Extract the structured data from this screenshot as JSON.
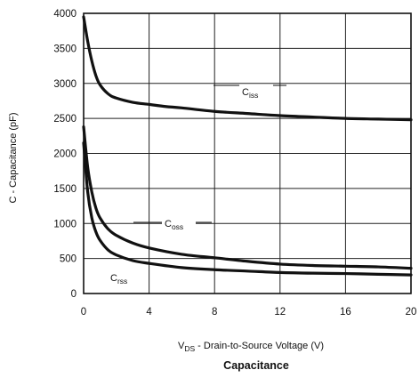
{
  "chart_data": {
    "type": "line",
    "caption": "Capacitance",
    "xlabel": {
      "prefix": "V",
      "sub": "DS",
      "text": "  -  Drain-to-Source Voltage (V)"
    },
    "ylabel": "C  -  Capacitance (pF)",
    "xlim": [
      0,
      20
    ],
    "ylim": [
      0,
      4000
    ],
    "xticks": [
      "0",
      "4",
      "8",
      "12",
      "16",
      "20"
    ],
    "yticks": [
      "0",
      "500",
      "1000",
      "1500",
      "2000",
      "2500",
      "3000",
      "3500",
      "4000"
    ],
    "grid": true,
    "series": [
      {
        "name": "Ciss",
        "label_main": "C",
        "label_sub": "iss",
        "x": [
          0,
          0.25,
          0.5,
          0.75,
          1,
          1.5,
          2,
          3,
          4,
          5,
          6,
          8,
          10,
          12,
          14,
          16,
          18,
          20
        ],
        "y": [
          3950,
          3600,
          3320,
          3110,
          2980,
          2850,
          2790,
          2730,
          2700,
          2670,
          2650,
          2600,
          2570,
          2540,
          2520,
          2500,
          2490,
          2480
        ]
      },
      {
        "name": "Coss",
        "label_main": "C",
        "label_sub": "oss",
        "x": [
          0,
          0.25,
          0.5,
          0.75,
          1,
          1.5,
          2,
          3,
          4,
          6,
          8,
          10,
          12,
          14,
          16,
          18,
          20
        ],
        "y": [
          2380,
          1800,
          1450,
          1220,
          1080,
          920,
          830,
          720,
          650,
          560,
          510,
          460,
          420,
          400,
          390,
          380,
          360
        ]
      },
      {
        "name": "Crss",
        "label_main": "C",
        "label_sub": "rss",
        "x": [
          0,
          0.25,
          0.5,
          0.75,
          1,
          1.5,
          2,
          3,
          4,
          6,
          8,
          10,
          12,
          14,
          16,
          18,
          20
        ],
        "y": [
          2150,
          1450,
          1080,
          880,
          760,
          620,
          550,
          470,
          430,
          370,
          340,
          320,
          300,
          290,
          285,
          275,
          265
        ]
      }
    ]
  }
}
